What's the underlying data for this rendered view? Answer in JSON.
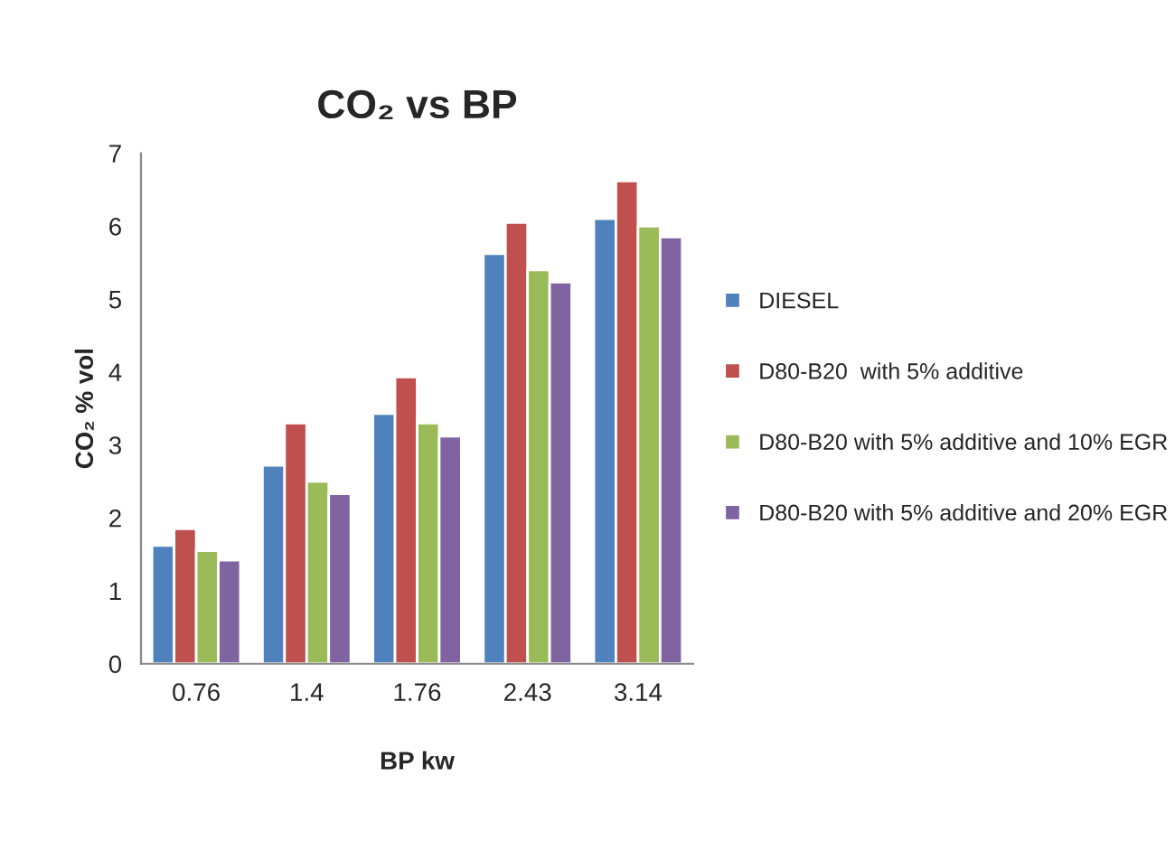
{
  "chart_data": {
    "type": "bar",
    "title": "CO₂ vs BP",
    "xlabel": "BP kw",
    "ylabel": "CO₂ % vol",
    "categories": [
      "0.76",
      "1.4",
      "1.76",
      "2.43",
      "3.14"
    ],
    "series": [
      {
        "name": "DIESEL",
        "color": "#4f81bd",
        "values": [
          1.62,
          2.72,
          3.43,
          5.62,
          6.1
        ]
      },
      {
        "name": "D80-B20  with 5% additive",
        "color": "#c0504d",
        "values": [
          1.85,
          3.3,
          3.93,
          6.05,
          6.62
        ]
      },
      {
        "name": "D80-B20 with 5% additive and 10% EGR",
        "color": "#9bbb59",
        "values": [
          1.55,
          2.5,
          3.3,
          5.4,
          6.0
        ]
      },
      {
        "name": "D80-B20 with 5% additive and 20% EGR",
        "color": "#8064a2",
        "values": [
          1.42,
          2.33,
          3.12,
          5.23,
          5.85
        ]
      }
    ],
    "ylim": [
      0,
      7
    ],
    "yticks": [
      0,
      1,
      2,
      3,
      4,
      5,
      6,
      7
    ],
    "grid": false,
    "legend": "right"
  }
}
